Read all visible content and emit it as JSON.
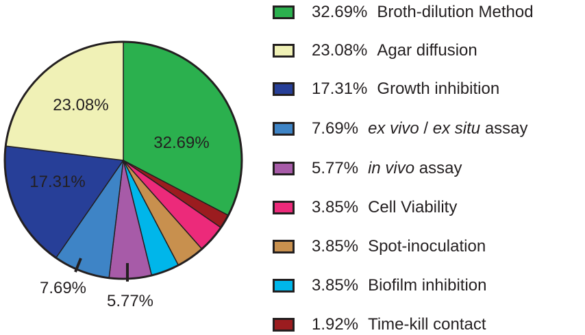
{
  "chart_data": {
    "type": "pie",
    "slices": [
      {
        "label": "Broth-dilution Method",
        "value": 32.69,
        "value_label": "32.69%",
        "color": "#2bb04e",
        "slice_label": "32.69%"
      },
      {
        "label": "Time-kill contact",
        "value": 1.92,
        "value_label": "1.92%",
        "color": "#9b1c1f"
      },
      {
        "label": "Cell Viability",
        "value": 3.85,
        "value_label": "3.85%",
        "color": "#ec2a7a"
      },
      {
        "label": "Spot-inoculation",
        "value": 3.85,
        "value_label": "3.85%",
        "color": "#c8904e"
      },
      {
        "label": "Biofilm inhibition",
        "value": 3.85,
        "value_label": "3.85%",
        "color": "#00b6ea"
      },
      {
        "label": "in vivo assay",
        "value": 5.77,
        "value_label": "5.77%",
        "color": "#a75ba8",
        "slice_label": "5.77%"
      },
      {
        "label": "ex vivo / ex situ assay",
        "value": 7.69,
        "value_label": "7.69%",
        "color": "#3e84c6",
        "slice_label": "7.69%"
      },
      {
        "label": "Growth inhibition",
        "value": 17.31,
        "value_label": "17.31%",
        "color": "#273f98",
        "slice_label": "17.31%"
      },
      {
        "label": "Agar diffusion",
        "value": 23.08,
        "value_label": "23.08%",
        "color": "#f0f1b6",
        "slice_label": "23.08%"
      }
    ],
    "legend": [
      {
        "pct": "32.69%",
        "text": "Broth-dilution Method",
        "color": "#2bb04e"
      },
      {
        "pct": "23.08%",
        "text": "Agar diffusion",
        "color": "#f0f1b6"
      },
      {
        "pct": "17.31%",
        "text": "Growth inhibition",
        "color": "#273f98"
      },
      {
        "pct": "7.69%",
        "text": "ex vivo / ex situ assay",
        "color": "#3e84c6"
      },
      {
        "pct": "5.77%",
        "text": "in vivo assay",
        "color": "#a75ba8"
      },
      {
        "pct": "3.85%",
        "text": "Cell Viability",
        "color": "#ec2a7a"
      },
      {
        "pct": "3.85%",
        "text": "Spot-inoculation",
        "color": "#c8904e"
      },
      {
        "pct": "3.85%",
        "text": "Biofilm inhibition",
        "color": "#00b6ea"
      },
      {
        "pct": "1.92%",
        "text": "Time-kill contact",
        "color": "#9b1c1f"
      }
    ],
    "legend_placement": "right",
    "start_angle": "12 o'clock",
    "direction": "clockwise"
  }
}
